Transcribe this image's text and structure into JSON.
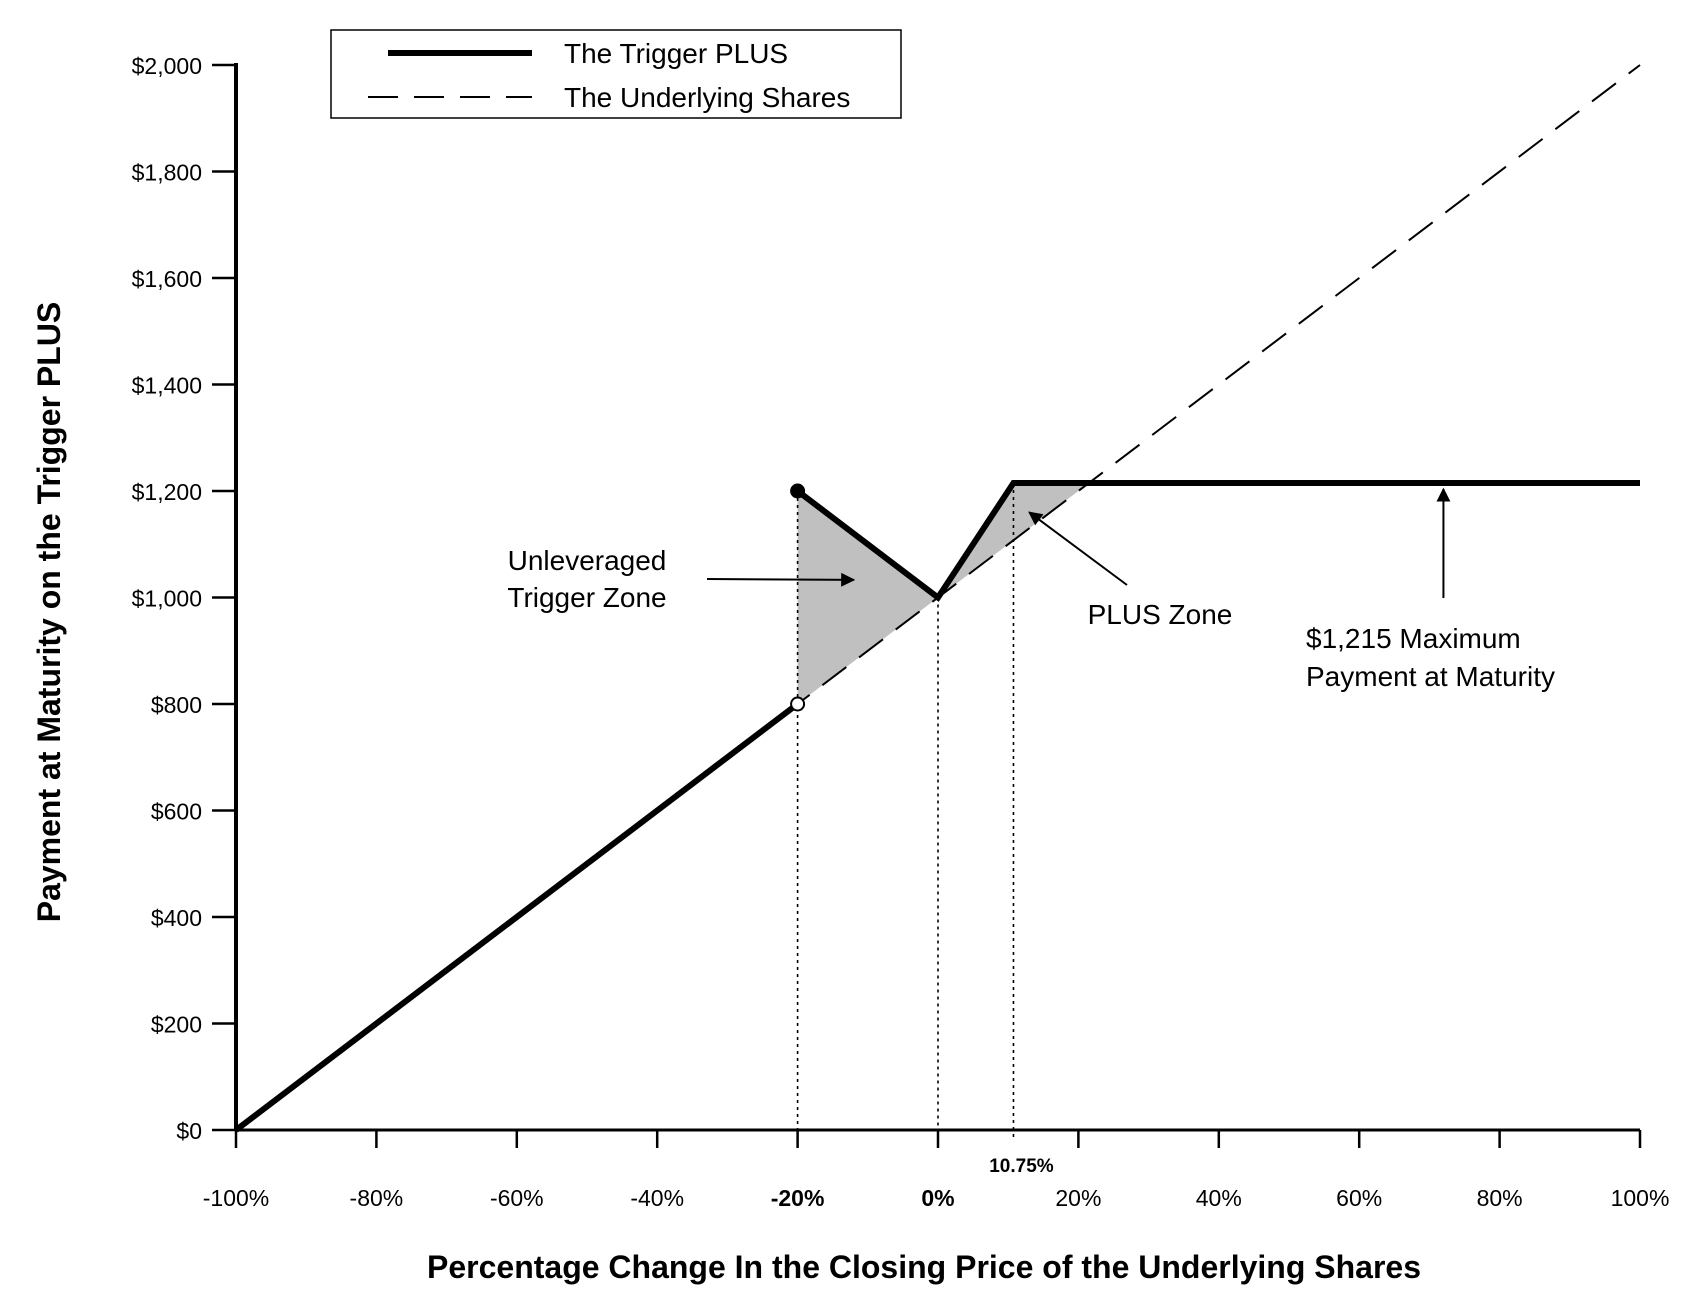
{
  "chart_data": {
    "type": "line",
    "xlabel": "Percentage Change In the Closing Price of the Underlying Shares",
    "ylabel": "Payment at Maturity on the Trigger PLUS",
    "xlim": [
      -100,
      100
    ],
    "ylim": [
      0,
      2000
    ],
    "x_ticks": [
      -100,
      -80,
      -60,
      -40,
      -20,
      0,
      20,
      40,
      60,
      80,
      100
    ],
    "x_tick_labels": [
      "-100%",
      "-80%",
      "-60%",
      "-40%",
      "-20%",
      "0%",
      "20%",
      "40%",
      "60%",
      "80%",
      "100%"
    ],
    "y_ticks": [
      0,
      200,
      400,
      600,
      800,
      1000,
      1200,
      1400,
      1600,
      1800,
      2000
    ],
    "y_tick_labels": [
      "$0",
      "$200",
      "$400",
      "$600",
      "$800",
      "$1,000",
      "$1,200",
      "$1,400",
      "$1,600",
      "$1,800",
      "$2,000"
    ],
    "grid": false,
    "legend_position": "top-left",
    "series": [
      {
        "name": "The Trigger PLUS",
        "style": "solid-thick",
        "segments": [
          [
            [
              -100,
              0
            ],
            [
              -20,
              800
            ]
          ],
          [
            [
              -20,
              1200
            ],
            [
              0,
              1000
            ],
            [
              10.75,
              1215
            ],
            [
              100,
              1215
            ]
          ]
        ]
      },
      {
        "name": "The Underlying Shares",
        "style": "dashed",
        "segments": [
          [
            [
              -100,
              0
            ],
            [
              100,
              2000
            ]
          ]
        ]
      }
    ],
    "shaded_regions": [
      {
        "label": "Unleveraged Trigger Zone",
        "polygon": [
          [
            -20,
            800
          ],
          [
            -20,
            1200
          ],
          [
            0,
            1000
          ]
        ]
      },
      {
        "label": "PLUS Zone",
        "polygon": [
          [
            0,
            1000
          ],
          [
            10.75,
            1215
          ],
          [
            21.5,
            1215
          ]
        ]
      }
    ],
    "reference_lines_x": [
      -20,
      0,
      10.75
    ],
    "markers": [
      {
        "x": -20,
        "y": 1200,
        "fill": "filled"
      },
      {
        "x": -20,
        "y": 800,
        "fill": "open"
      }
    ],
    "extra_x_labels": {
      "-20": "-20%",
      "0": "0%",
      "10.75": "10.75%"
    },
    "annotations": [
      {
        "lines": [
          "Unleveraged",
          "Trigger Zone"
        ],
        "arrow_to": [
          -12,
          1035
        ]
      },
      {
        "lines": [
          "PLUS Zone"
        ],
        "arrow_to": [
          13,
          1160
        ]
      },
      {
        "lines": [
          "$1,215 Maximum",
          "Payment at Maturity"
        ],
        "arrow_to": [
          72,
          1215
        ]
      }
    ],
    "colors": {
      "line": "#000000",
      "shade": "#c0c0c0"
    }
  }
}
